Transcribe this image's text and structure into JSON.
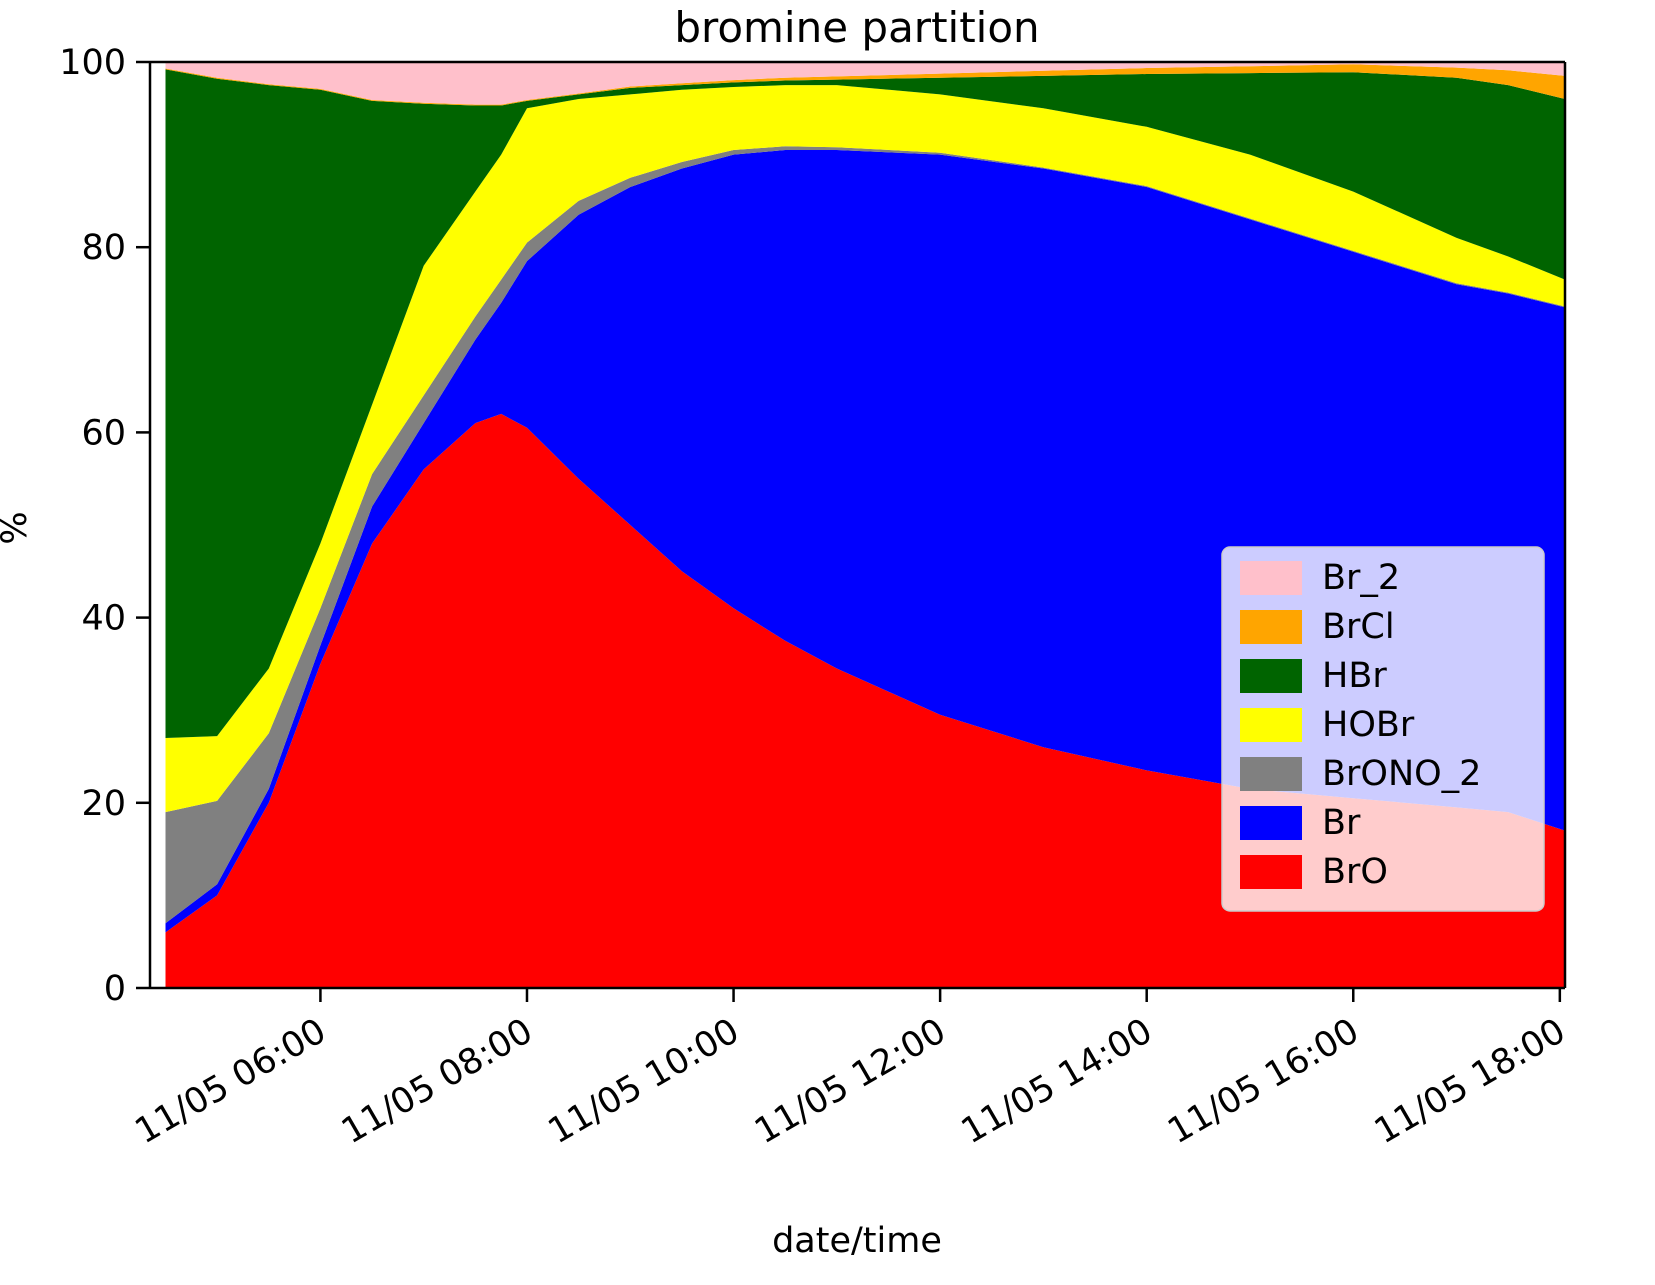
{
  "page": {
    "background": "#ffffff"
  },
  "chart_data": {
    "type": "area",
    "variant": "stacked-percentage",
    "title": "bromine partition",
    "xlabel": "date/time",
    "ylabel": "%",
    "ylim": [
      0,
      100
    ],
    "x_range": [
      4.35,
      18.05
    ],
    "grid": false,
    "legend_position": "lower right",
    "y_ticks": [
      0,
      20,
      40,
      60,
      80,
      100
    ],
    "x_ticks": [
      {
        "hour": 6,
        "label": "11/05 06:00"
      },
      {
        "hour": 8,
        "label": "11/05 08:00"
      },
      {
        "hour": 10,
        "label": "11/05 10:00"
      },
      {
        "hour": 12,
        "label": "11/05 12:00"
      },
      {
        "hour": 14,
        "label": "11/05 14:00"
      },
      {
        "hour": 16,
        "label": "11/05 16:00"
      },
      {
        "hour": 18,
        "label": "11/05 18:00"
      }
    ],
    "x": [
      4.5,
      5.0,
      5.5,
      6.0,
      6.5,
      7.0,
      7.5,
      7.75,
      8.0,
      8.5,
      9.0,
      9.5,
      10.0,
      10.5,
      11.0,
      12.0,
      13.0,
      14.0,
      15.0,
      16.0,
      17.0,
      17.5,
      18.05
    ],
    "series": [
      {
        "name": "BrO",
        "color": "#ff0000",
        "values": [
          6,
          10,
          20,
          35,
          48,
          56,
          61,
          62,
          60.5,
          55,
          50,
          45,
          41,
          37.5,
          34.5,
          29.5,
          26,
          23.5,
          21.5,
          20.5,
          19.5,
          19,
          17
        ]
      },
      {
        "name": "Br",
        "color": "#0000ff",
        "values": [
          1,
          1.2,
          1.5,
          2,
          4,
          5,
          9,
          12,
          18,
          28.5,
          36.5,
          43.5,
          49,
          53,
          56,
          60.5,
          62.5,
          63,
          61.5,
          59,
          56.5,
          56,
          56.5
        ]
      },
      {
        "name": "BrONO_2",
        "color": "#808080",
        "values": [
          12,
          9,
          6,
          4,
          3.5,
          3,
          2.5,
          2.5,
          2,
          1.5,
          1,
          0.7,
          0.5,
          0.4,
          0.3,
          0.2,
          0.1,
          0.1,
          0.1,
          0.1,
          0.1,
          0.1,
          0.1
        ]
      },
      {
        "name": "HOBr",
        "color": "#ffff00",
        "values": [
          8,
          7,
          7,
          7,
          7.5,
          14,
          13.5,
          13.5,
          14.5,
          11,
          9,
          7.8,
          6.8,
          6.6,
          6.7,
          6.3,
          6.4,
          6.4,
          6.9,
          6.4,
          4.9,
          3.9,
          2.9
        ]
      },
      {
        "name": "HBr",
        "color": "#006400",
        "values": [
          72.2,
          71,
          63,
          49,
          32.8,
          17.5,
          9.3,
          5.3,
          0.8,
          0.5,
          0.7,
          0.5,
          0.5,
          0.5,
          0.6,
          1.8,
          3.5,
          5.7,
          8.8,
          12.9,
          17.3,
          18.5,
          19.5
        ]
      },
      {
        "name": "BrCl",
        "color": "#ffa500",
        "values": [
          0.1,
          0.1,
          0.1,
          0.1,
          0.1,
          0.1,
          0.1,
          0.1,
          0.1,
          0.1,
          0.15,
          0.2,
          0.25,
          0.3,
          0.35,
          0.45,
          0.55,
          0.65,
          0.75,
          0.85,
          1.1,
          1.6,
          2.5
        ]
      },
      {
        "name": "Br_2",
        "color": "#ffc0cb",
        "values": [
          0.7,
          1.7,
          2.4,
          2.9,
          4.1,
          4.4,
          4.6,
          4.6,
          4.1,
          3.4,
          2.65,
          2.3,
          1.95,
          1.7,
          1.55,
          1.25,
          0.95,
          0.65,
          0.45,
          0.25,
          0.6,
          0.9,
          1.5
        ]
      }
    ],
    "legend": [
      "Br_2",
      "BrCl",
      "HBr",
      "HOBr",
      "BrONO_2",
      "Br",
      "BrO"
    ]
  }
}
